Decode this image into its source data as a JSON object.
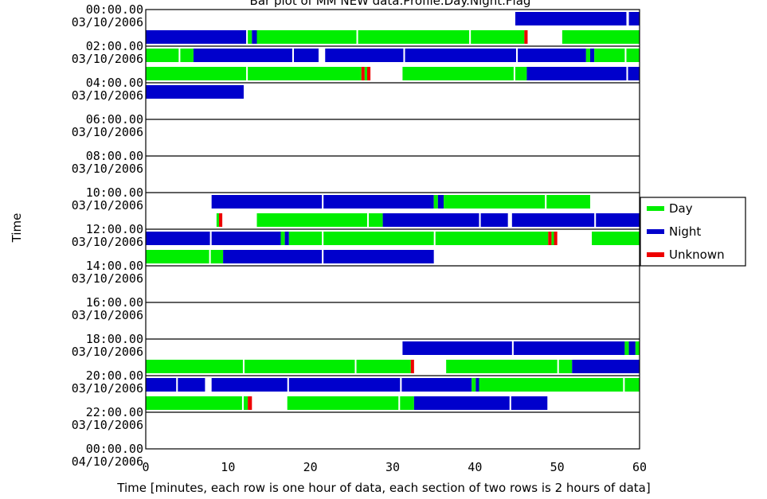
{
  "chart_data": {
    "type": "bar",
    "title": "Bar plot of MM NEW data.Profile.Day.Night.Flag",
    "xlabel": "Time [minutes, each row is one hour of data, each section of two rows is 2 hours of data]",
    "ylabel": "Time",
    "xlim": [
      0,
      60
    ],
    "x_ticks": [
      0,
      10,
      20,
      30,
      40,
      50,
      60
    ],
    "x_tick_labels": [
      "0",
      "10",
      "20",
      "30",
      "40",
      "50",
      "60"
    ],
    "row_minutes": 60,
    "grid": false,
    "legend_position": "right",
    "colors": {
      "Day": "#00ee00",
      "Night": "#0000cc",
      "Unknown": "#ee0000"
    },
    "legend": [
      "Day",
      "Night",
      "Unknown"
    ],
    "sections": [
      {
        "time": "00:00.00",
        "date": "03/10/2006"
      },
      {
        "time": "02:00.00",
        "date": "03/10/2006"
      },
      {
        "time": "04:00.00",
        "date": "03/10/2006"
      },
      {
        "time": "06:00.00",
        "date": "03/10/2006"
      },
      {
        "time": "08:00.00",
        "date": "03/10/2006"
      },
      {
        "time": "10:00.00",
        "date": "03/10/2006"
      },
      {
        "time": "12:00.00",
        "date": "03/10/2006"
      },
      {
        "time": "14:00.00",
        "date": "03/10/2006"
      },
      {
        "time": "16:00.00",
        "date": "03/10/2006"
      },
      {
        "time": "18:00.00",
        "date": "03/10/2006"
      },
      {
        "time": "20:00.00",
        "date": "03/10/2006"
      },
      {
        "time": "22:00.00",
        "date": "03/10/2006"
      },
      {
        "time": "00:00.00",
        "date": "04/10/2006"
      }
    ],
    "rows": [
      {
        "hour": 0,
        "segments": [
          {
            "start": 44.9,
            "end": 58.4,
            "flag": "Night"
          },
          {
            "start": 58.7,
            "end": 60,
            "flag": "Night"
          }
        ]
      },
      {
        "hour": 1,
        "segments": [
          {
            "start": 0,
            "end": 12.2,
            "flag": "Night"
          },
          {
            "start": 12.4,
            "end": 12.9,
            "flag": "Day"
          },
          {
            "start": 12.9,
            "end": 13.5,
            "flag": "Night"
          },
          {
            "start": 13.5,
            "end": 25.6,
            "flag": "Day"
          },
          {
            "start": 25.8,
            "end": 39.3,
            "flag": "Day"
          },
          {
            "start": 39.5,
            "end": 46.0,
            "flag": "Day"
          },
          {
            "start": 46.0,
            "end": 46.4,
            "flag": "Unknown"
          },
          {
            "start": 50.6,
            "end": 60,
            "flag": "Day"
          }
        ]
      },
      {
        "hour": 2,
        "segments": [
          {
            "start": 0,
            "end": 4.0,
            "flag": "Day"
          },
          {
            "start": 4.2,
            "end": 5.8,
            "flag": "Day"
          },
          {
            "start": 5.8,
            "end": 17.8,
            "flag": "Night"
          },
          {
            "start": 18.0,
            "end": 21.0,
            "flag": "Night"
          },
          {
            "start": 21.8,
            "end": 31.3,
            "flag": "Night"
          },
          {
            "start": 31.5,
            "end": 45.0,
            "flag": "Night"
          },
          {
            "start": 45.2,
            "end": 53.5,
            "flag": "Night"
          },
          {
            "start": 53.5,
            "end": 54.0,
            "flag": "Day"
          },
          {
            "start": 54.0,
            "end": 54.5,
            "flag": "Night"
          },
          {
            "start": 54.5,
            "end": 58.2,
            "flag": "Day"
          },
          {
            "start": 58.4,
            "end": 60,
            "flag": "Day"
          }
        ]
      },
      {
        "hour": 3,
        "segments": [
          {
            "start": 0,
            "end": 12.2,
            "flag": "Day"
          },
          {
            "start": 12.4,
            "end": 26.2,
            "flag": "Day"
          },
          {
            "start": 26.2,
            "end": 26.6,
            "flag": "Unknown"
          },
          {
            "start": 26.6,
            "end": 26.9,
            "flag": "Day"
          },
          {
            "start": 26.9,
            "end": 27.3,
            "flag": "Unknown"
          },
          {
            "start": 31.2,
            "end": 44.7,
            "flag": "Day"
          },
          {
            "start": 44.9,
            "end": 46.3,
            "flag": "Day"
          },
          {
            "start": 46.3,
            "end": 58.4,
            "flag": "Night"
          },
          {
            "start": 58.6,
            "end": 60,
            "flag": "Night"
          }
        ]
      },
      {
        "hour": 4,
        "segments": [
          {
            "start": 0,
            "end": 11.9,
            "flag": "Night"
          }
        ]
      },
      {
        "hour": 5,
        "segments": []
      },
      {
        "hour": 6,
        "segments": []
      },
      {
        "hour": 7,
        "segments": []
      },
      {
        "hour": 8,
        "segments": []
      },
      {
        "hour": 9,
        "segments": []
      },
      {
        "hour": 10,
        "segments": [
          {
            "start": 8.0,
            "end": 21.4,
            "flag": "Night"
          },
          {
            "start": 21.6,
            "end": 35.0,
            "flag": "Night"
          },
          {
            "start": 35.0,
            "end": 35.5,
            "flag": "Day"
          },
          {
            "start": 35.5,
            "end": 36.2,
            "flag": "Night"
          },
          {
            "start": 36.2,
            "end": 48.5,
            "flag": "Day"
          },
          {
            "start": 48.7,
            "end": 54.0,
            "flag": "Day"
          }
        ]
      },
      {
        "hour": 11,
        "segments": [
          {
            "start": 8.6,
            "end": 8.9,
            "flag": "Day"
          },
          {
            "start": 8.9,
            "end": 9.3,
            "flag": "Unknown"
          },
          {
            "start": 13.5,
            "end": 26.9,
            "flag": "Day"
          },
          {
            "start": 27.1,
            "end": 28.8,
            "flag": "Day"
          },
          {
            "start": 28.8,
            "end": 40.5,
            "flag": "Night"
          },
          {
            "start": 40.7,
            "end": 44.0,
            "flag": "Night"
          },
          {
            "start": 44.5,
            "end": 54.5,
            "flag": "Night"
          },
          {
            "start": 54.7,
            "end": 60,
            "flag": "Night"
          }
        ]
      },
      {
        "hour": 12,
        "segments": [
          {
            "start": 0,
            "end": 7.8,
            "flag": "Night"
          },
          {
            "start": 8.0,
            "end": 16.4,
            "flag": "Night"
          },
          {
            "start": 16.4,
            "end": 16.9,
            "flag": "Day"
          },
          {
            "start": 16.9,
            "end": 17.4,
            "flag": "Night"
          },
          {
            "start": 17.4,
            "end": 21.4,
            "flag": "Day"
          },
          {
            "start": 21.6,
            "end": 35.0,
            "flag": "Day"
          },
          {
            "start": 35.2,
            "end": 48.9,
            "flag": "Day"
          },
          {
            "start": 48.9,
            "end": 49.3,
            "flag": "Unknown"
          },
          {
            "start": 49.3,
            "end": 49.6,
            "flag": "Day"
          },
          {
            "start": 49.6,
            "end": 50.0,
            "flag": "Unknown"
          },
          {
            "start": 54.2,
            "end": 60,
            "flag": "Day"
          }
        ]
      },
      {
        "hour": 13,
        "segments": [
          {
            "start": 0,
            "end": 7.7,
            "flag": "Day"
          },
          {
            "start": 7.9,
            "end": 9.4,
            "flag": "Day"
          },
          {
            "start": 9.4,
            "end": 21.4,
            "flag": "Night"
          },
          {
            "start": 21.6,
            "end": 35.0,
            "flag": "Night"
          }
        ]
      },
      {
        "hour": 14,
        "segments": []
      },
      {
        "hour": 15,
        "segments": []
      },
      {
        "hour": 16,
        "segments": []
      },
      {
        "hour": 17,
        "segments": []
      },
      {
        "hour": 18,
        "segments": [
          {
            "start": 31.2,
            "end": 44.5,
            "flag": "Night"
          },
          {
            "start": 44.7,
            "end": 58.2,
            "flag": "Night"
          },
          {
            "start": 58.2,
            "end": 58.7,
            "flag": "Day"
          },
          {
            "start": 58.7,
            "end": 59.5,
            "flag": "Night"
          },
          {
            "start": 59.5,
            "end": 60,
            "flag": "Day"
          }
        ]
      },
      {
        "hour": 19,
        "segments": [
          {
            "start": 0,
            "end": 11.8,
            "flag": "Day"
          },
          {
            "start": 12.0,
            "end": 25.4,
            "flag": "Day"
          },
          {
            "start": 25.6,
            "end": 32.2,
            "flag": "Day"
          },
          {
            "start": 32.2,
            "end": 32.6,
            "flag": "Unknown"
          },
          {
            "start": 36.5,
            "end": 50.0,
            "flag": "Day"
          },
          {
            "start": 50.2,
            "end": 51.8,
            "flag": "Day"
          },
          {
            "start": 51.8,
            "end": 60,
            "flag": "Night"
          }
        ]
      },
      {
        "hour": 20,
        "segments": [
          {
            "start": 0,
            "end": 3.7,
            "flag": "Night"
          },
          {
            "start": 3.9,
            "end": 7.2,
            "flag": "Night"
          },
          {
            "start": 8.0,
            "end": 17.2,
            "flag": "Night"
          },
          {
            "start": 17.4,
            "end": 30.9,
            "flag": "Night"
          },
          {
            "start": 31.1,
            "end": 39.6,
            "flag": "Night"
          },
          {
            "start": 39.6,
            "end": 40.1,
            "flag": "Day"
          },
          {
            "start": 40.1,
            "end": 40.5,
            "flag": "Night"
          },
          {
            "start": 40.5,
            "end": 58.0,
            "flag": "Day"
          },
          {
            "start": 58.2,
            "end": 60,
            "flag": "Day"
          }
        ]
      },
      {
        "hour": 21,
        "segments": [
          {
            "start": 0,
            "end": 11.7,
            "flag": "Day"
          },
          {
            "start": 11.9,
            "end": 12.4,
            "flag": "Day"
          },
          {
            "start": 12.4,
            "end": 12.9,
            "flag": "Unknown"
          },
          {
            "start": 17.2,
            "end": 30.7,
            "flag": "Day"
          },
          {
            "start": 30.9,
            "end": 32.6,
            "flag": "Day"
          },
          {
            "start": 32.6,
            "end": 44.2,
            "flag": "Night"
          },
          {
            "start": 44.4,
            "end": 48.8,
            "flag": "Night"
          }
        ]
      },
      {
        "hour": 22,
        "segments": []
      },
      {
        "hour": 23,
        "segments": []
      }
    ]
  }
}
